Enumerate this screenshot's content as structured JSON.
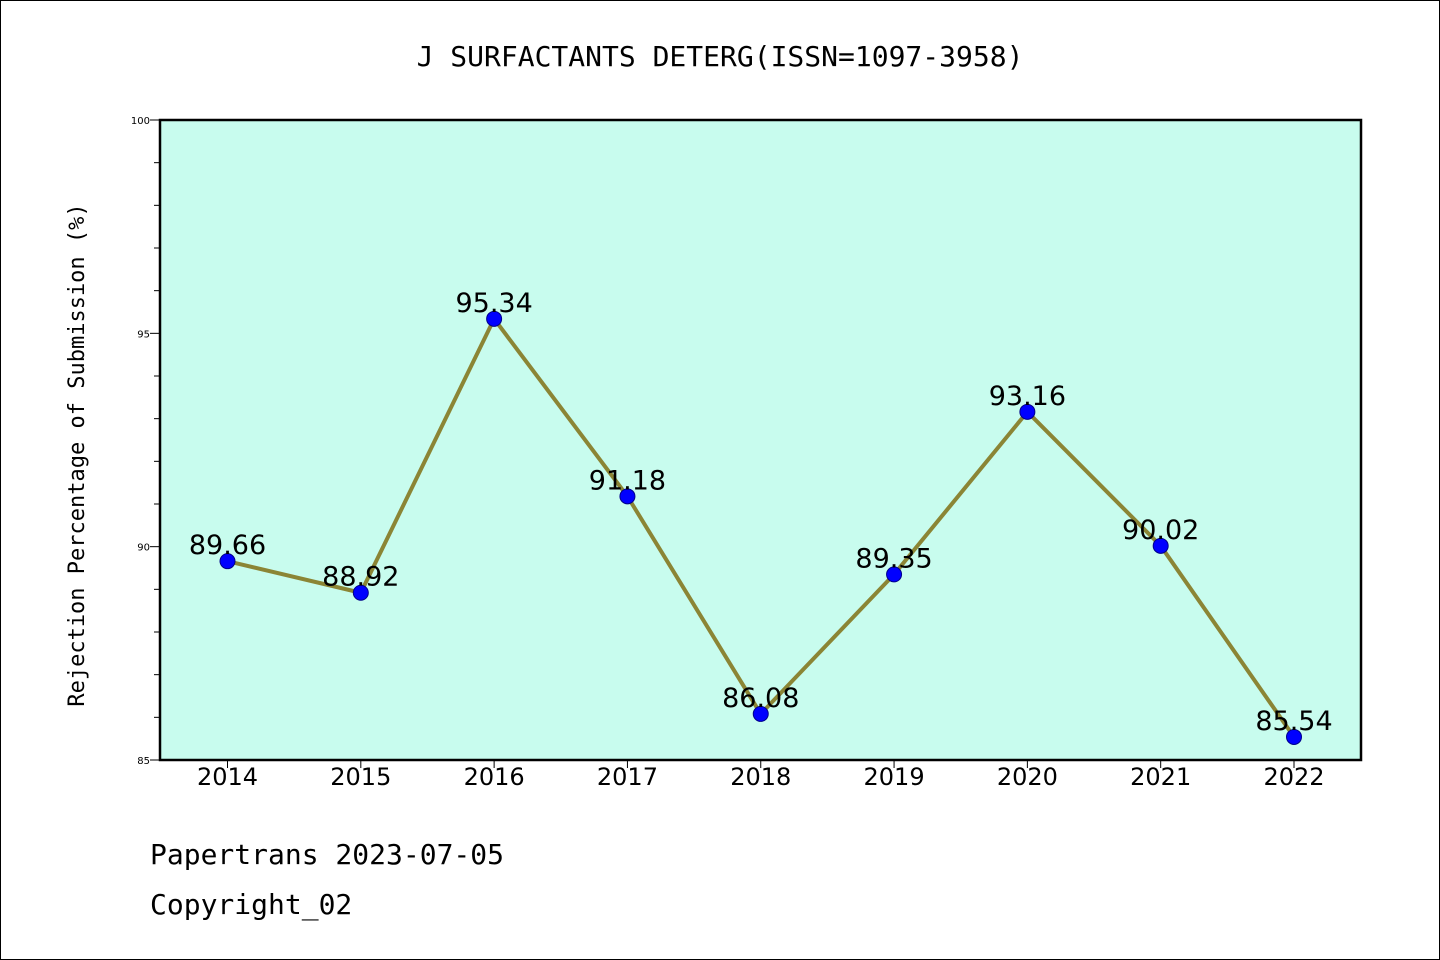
{
  "chart_data": {
    "type": "line",
    "title": "J SURFACTANTS DETERG(ISSN=1097-3958)",
    "xlabel": "",
    "ylabel": "Rejection Percentage of Submission (%)",
    "categories": [
      "2014",
      "2015",
      "2016",
      "2017",
      "2018",
      "2019",
      "2020",
      "2021",
      "2022"
    ],
    "series": [
      {
        "values": [
          89.66,
          88.92,
          95.34,
          91.18,
          86.08,
          89.35,
          93.16,
          90.02,
          85.54
        ],
        "labels": [
          "89.66",
          "88.92",
          "95.34",
          "91.18",
          "86.08",
          "89.35",
          "93.16",
          "90.02",
          "85.54"
        ]
      }
    ],
    "ylim": [
      85,
      100
    ],
    "yticks": [
      "85",
      "90",
      "95",
      "100"
    ],
    "grid": false,
    "colors": {
      "plot_bg": "#c8fcee",
      "line": "#8b8535",
      "marker": "#0000ff"
    }
  },
  "footer": {
    "line1": "Papertrans 2023-07-05",
    "line2": "Copyright_02"
  }
}
